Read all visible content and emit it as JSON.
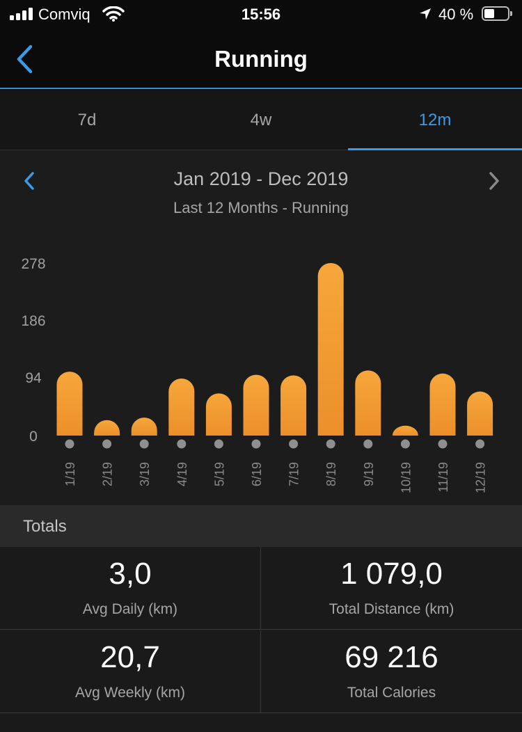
{
  "status_bar": {
    "carrier": "Comviq",
    "time": "15:56",
    "battery_percent": "40 %",
    "battery_level": 0.4,
    "icons": [
      "signal-icon",
      "wifi-icon",
      "location-arrow-icon",
      "battery-icon"
    ]
  },
  "nav": {
    "title": "Running",
    "back_icon": "chevron-left-icon"
  },
  "tabs": [
    {
      "label": "7d",
      "active": false
    },
    {
      "label": "4w",
      "active": false
    },
    {
      "label": "12m",
      "active": true
    }
  ],
  "period": {
    "range": "Jan 2019 - Dec 2019",
    "subtitle": "Last 12 Months - Running"
  },
  "chart_data": {
    "type": "bar",
    "categories": [
      "1/19",
      "2/19",
      "3/19",
      "4/19",
      "5/19",
      "6/19",
      "7/19",
      "8/19",
      "9/19",
      "10/19",
      "11/19",
      "12/19"
    ],
    "values": [
      103,
      25,
      29,
      92,
      68,
      98,
      97,
      278,
      105,
      16,
      100,
      71
    ],
    "yticks": [
      "0",
      "94",
      "186",
      "278"
    ],
    "ytick_values": [
      0,
      94,
      186,
      278
    ],
    "ylim": [
      0,
      278
    ],
    "bar_color": "#f3a035",
    "grid": false
  },
  "totals": {
    "header": "Totals",
    "stats": [
      {
        "value": "3,0",
        "label": "Avg Daily (km)"
      },
      {
        "value": "1 079,0",
        "label": "Total Distance (km)"
      },
      {
        "value": "20,7",
        "label": "Avg Weekly (km)"
      },
      {
        "value": "69 216",
        "label": "Total Calories"
      }
    ]
  },
  "colors": {
    "accent": "#3a9be8",
    "bar": "#f3a035",
    "background": "#111111"
  }
}
